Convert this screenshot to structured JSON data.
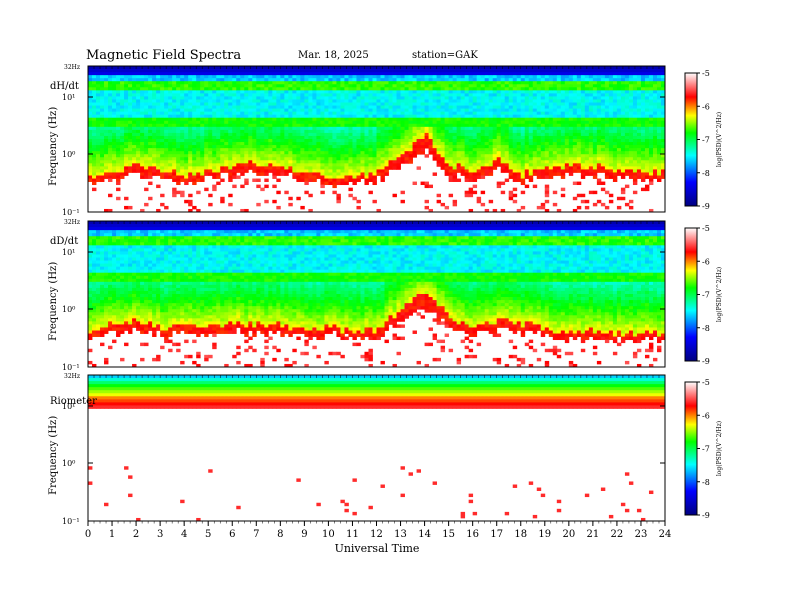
{
  "header": {
    "title": "Magnetic  Field  Spectra",
    "date": "Mar. 18, 2025",
    "station": "station=GAK"
  },
  "xaxis": {
    "label": "Universal  Time",
    "ticks": [
      "0",
      "1",
      "2",
      "3",
      "4",
      "5",
      "6",
      "7",
      "8",
      "9",
      "10",
      "11",
      "12",
      "13",
      "14",
      "15",
      "16",
      "17",
      "18",
      "19",
      "20",
      "21",
      "22",
      "23",
      "24"
    ]
  },
  "colorbar": {
    "label": "log(PSD)(V^2/Hz)",
    "ticks": [
      "-5",
      "-6",
      "-7",
      "-8",
      "-9"
    ],
    "colors": [
      "#ffffff",
      "#ff0000",
      "#ffff00",
      "#00ff00",
      "#00ffff",
      "#0000ff",
      "#000080"
    ]
  },
  "panels": [
    {
      "name": "dH/dt",
      "ylabel": "Frequency (Hz)",
      "top_label": "32Hz",
      "ytick_top": "10¹",
      "ytick_mid": "10⁰",
      "ytick_bot": "10⁻¹",
      "white_threshold": [
        3.2,
        3.6,
        4.2,
        3.9,
        3.3,
        3.7,
        4.1,
        4.3,
        4.0,
        3.6,
        3.1,
        3.0,
        3.5,
        5.2,
        6.6,
        4.0,
        3.6,
        4.6,
        3.3,
        3.7,
        4.2,
        4.0,
        3.8,
        3.6,
        3.5
      ],
      "red_top": [
        2.2,
        2.3,
        2.6,
        2.4,
        2.2,
        2.4,
        2.6,
        2.7,
        2.5,
        2.3,
        2.0,
        2.0,
        2.3,
        3.6,
        5.4,
        2.8,
        2.5,
        3.2,
        2.2,
        2.6,
        2.8,
        2.8,
        2.6,
        2.5,
        2.4
      ]
    },
    {
      "name": "dD/dt",
      "ylabel": "Frequency (Hz)",
      "top_label": "32Hz",
      "ytick_top": "10¹",
      "ytick_mid": "10⁰",
      "ytick_bot": "10⁻¹",
      "white_threshold": [
        3.1,
        3.8,
        3.9,
        3.5,
        3.6,
        3.9,
        3.8,
        3.9,
        3.6,
        3.2,
        3.6,
        3.0,
        3.3,
        5.3,
        6.4,
        4.2,
        3.5,
        4.2,
        3.6,
        3.5,
        3.2,
        3.2,
        3.1,
        3.1,
        3.0
      ],
      "red_top": [
        2.1,
        2.6,
        3.0,
        2.4,
        2.5,
        2.7,
        2.6,
        2.7,
        2.5,
        2.2,
        2.4,
        2.0,
        2.2,
        3.8,
        5.4,
        2.8,
        2.4,
        2.9,
        2.6,
        2.3,
        2.2,
        2.2,
        2.1,
        2.1,
        2.0
      ]
    },
    {
      "name": "Riometer",
      "ylabel": "Frequency (Hz)",
      "top_label": "32Hz",
      "ytick_top": "10¹",
      "ytick_mid": "10⁰",
      "ytick_bot": "10⁻¹",
      "white_threshold": [
        7.5,
        7.5,
        7.5,
        7.5,
        7.5,
        7.5,
        7.5,
        7.5,
        7.5,
        7.5,
        7.5,
        7.5,
        7.5,
        7.5,
        7.5,
        7.5,
        7.5,
        7.5,
        7.5,
        7.5,
        7.5,
        7.5,
        7.5,
        7.5,
        7.5
      ],
      "red_top": [
        7.0,
        7.0,
        7.0,
        7.0,
        7.0,
        7.0,
        7.0,
        7.0,
        7.0,
        7.0,
        7.0,
        7.0,
        7.0,
        7.0,
        7.0,
        7.0,
        7.0,
        7.0,
        7.0,
        7.0,
        7.0,
        7.0,
        7.0,
        7.0,
        7.0
      ]
    }
  ],
  "chart_data": {
    "type": "heatmap",
    "title": "Magnetic  Field  Spectra",
    "subtitle": "Mar. 18, 2025    station=GAK",
    "xlabel": "Universal  Time",
    "ylabel": "Frequency (Hz)",
    "xlim": [
      0,
      24
    ],
    "ylim": [
      0.1,
      32
    ],
    "yscale": "log",
    "zlabel": "log(PSD)(V^2/Hz)",
    "zlim": [
      -9,
      -5
    ],
    "series": [
      {
        "name": "dH/dt"
      },
      {
        "name": "dD/dt"
      },
      {
        "name": "Riometer"
      }
    ]
  }
}
